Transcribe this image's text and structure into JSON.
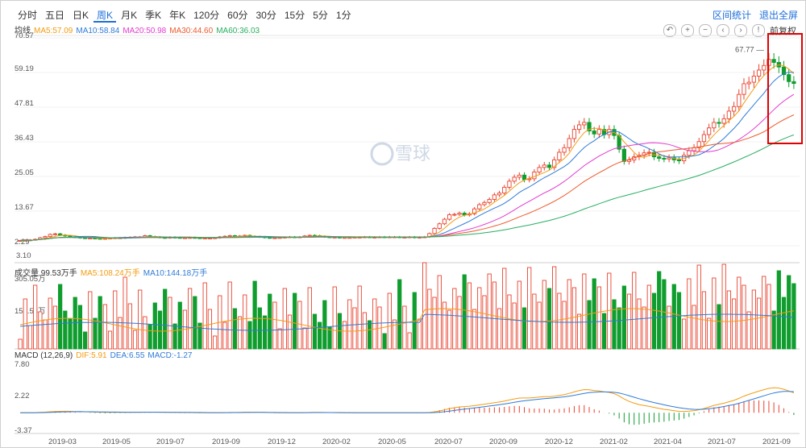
{
  "tabs": [
    "分时",
    "五日",
    "日K",
    "周K",
    "月K",
    "季K",
    "年K",
    "120分",
    "60分",
    "30分",
    "15分",
    "5分",
    "1分"
  ],
  "active_tab": "周K",
  "top_links": {
    "range_stats": "区间统计",
    "exit_fullscreen": "退出全屏"
  },
  "toolbar": {
    "undo": "↶",
    "zoom_in": "+",
    "zoom_out": "−",
    "prev": "‹",
    "next": "›",
    "info": "!",
    "adjust": "前复权"
  },
  "ma_row": {
    "label": "均线",
    "items": [
      {
        "text": "MA5:57.09",
        "color": "#f39c12"
      },
      {
        "text": "MA10:58.84",
        "color": "#2e7bd6"
      },
      {
        "text": "MA20:50.98",
        "color": "#e23ad0"
      },
      {
        "text": "MA30:44.60",
        "color": "#ec5a2c"
      },
      {
        "text": "MA60:36.03",
        "color": "#27ae60"
      }
    ]
  },
  "vol_row": {
    "label": "成交量 99.53万手",
    "items": [
      {
        "text": "MA5:108.24万手",
        "color": "#f39c12"
      },
      {
        "text": "MA10:144.18万手",
        "color": "#2e7bd6"
      }
    ]
  },
  "macd_row": {
    "label": "MACD (12,26,9)",
    "items": [
      {
        "text": "DIF:5.91",
        "color": "#f39c12"
      },
      {
        "text": "DEA:6.55",
        "color": "#2e7bd6"
      },
      {
        "text": "MACD:-1.27",
        "color": "#2e7bd6"
      }
    ]
  },
  "watermark": "雪球",
  "price_axis": [
    "70.57",
    "59.19",
    "47.81",
    "36.43",
    "25.05",
    "13.67",
    "2.29"
  ],
  "price_low_label": "3.10",
  "max_label": "67.77",
  "vol_axis": [
    "305.05万",
    "152.53万"
  ],
  "macd_axis": [
    "7.80",
    "2.22",
    "-3.37"
  ],
  "x_axis": [
    "2019-03",
    "2019-05",
    "2019-07",
    "2019-09",
    "2019-12",
    "2020-02",
    "2020-05",
    "2020-07",
    "2020-09",
    "2020-12",
    "2021-02",
    "2021-04",
    "2021-07",
    "2021-09"
  ],
  "colors": {
    "up": "#e8432e",
    "down": "#0f9d2e",
    "accent": "#1e6fd9",
    "highlight": "#e00000"
  },
  "chart_data": {
    "type": "candlestick",
    "price_range": [
      2.29,
      70.57
    ],
    "close_series": [
      4.0,
      4.1,
      4.2,
      4.4,
      4.9,
      5.3,
      6.0,
      6.2,
      5.8,
      5.5,
      5.2,
      5.1,
      4.9,
      4.8,
      4.8,
      4.7,
      4.6,
      4.7,
      4.8,
      4.9,
      4.9,
      5.0,
      5.1,
      5.2,
      5.2,
      5.6,
      5.3,
      5.2,
      5.0,
      4.9,
      5.1,
      5.0,
      4.9,
      4.9,
      5.0,
      4.9,
      4.8,
      4.8,
      4.8,
      4.9,
      5.2,
      5.4,
      5.6,
      5.3,
      5.5,
      5.7,
      5.4,
      5.3,
      5.2,
      5.0,
      4.9,
      4.9,
      5.0,
      5.1,
      5.2,
      5.1,
      5.2,
      5.5,
      5.7,
      5.6,
      5.4,
      5.2,
      5.1,
      5.1,
      5.0,
      5.0,
      5.0,
      5.1,
      5.1,
      5.2,
      5.1,
      5.1,
      5.2,
      5.1,
      5.2,
      5.2,
      5.1,
      5.1,
      5.2,
      5.0,
      5.1,
      5.2,
      6.3,
      8.0,
      9.5,
      11.0,
      12.5,
      12.6,
      13.0,
      12.4,
      12.8,
      14.4,
      15.8,
      16.5,
      17.5,
      19.0,
      19.6,
      21.5,
      23.5,
      24.8,
      25.5,
      24.0,
      24.3,
      26.5,
      28.0,
      28.8,
      28.0,
      30.5,
      33.0,
      34.5,
      37.5,
      40.5,
      42.0,
      42.8,
      40.0,
      39.0,
      40.5,
      38.8,
      40.5,
      38.5,
      34.0,
      30.0,
      30.5,
      31.5,
      32.0,
      32.8,
      33.0,
      31.5,
      31.0,
      30.8,
      31.2,
      30.5,
      30.2,
      32.0,
      33.5,
      34.5,
      36.5,
      38.8,
      41.0,
      42.8,
      42.5,
      44.0,
      46.5,
      48.0,
      52.0,
      55.5,
      56.0,
      58.0,
      60.0,
      61.5,
      63.5,
      62.5,
      61.0,
      58.5,
      56.2,
      55.6
    ],
    "ma_series": {
      "MA5": {
        "color": "#f39c12"
      },
      "MA10": {
        "color": "#2e7bd6"
      },
      "MA20": {
        "color": "#e23ad0"
      },
      "MA30": {
        "color": "#ec5a2c"
      },
      "MA60": {
        "color": "#27ae60"
      }
    },
    "volume_axis_max_wan": 305.05,
    "macd_range": [
      -3.37,
      7.8
    ]
  }
}
